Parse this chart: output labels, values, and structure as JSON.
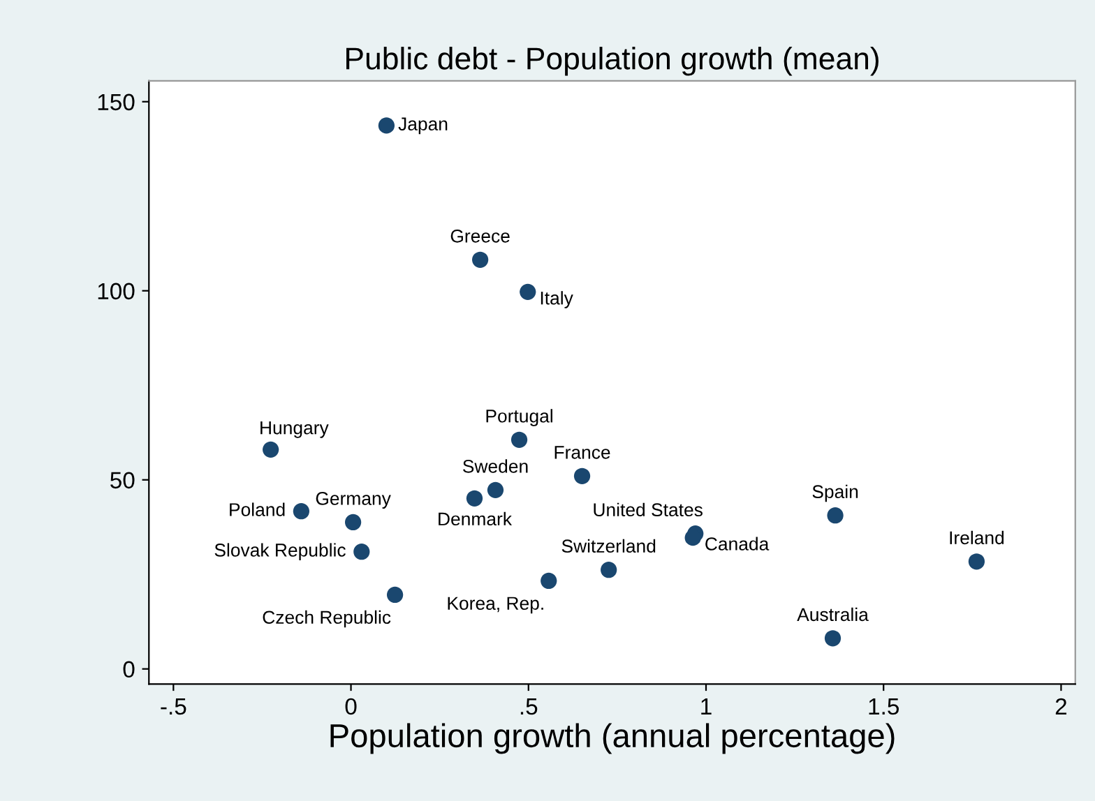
{
  "chart_data": {
    "type": "scatter",
    "title": "Public debt - Population growth (mean)",
    "xlabel": "Population growth (annual percentage)",
    "series": [
      {
        "color": "#1a476f",
        "x": [
          0.1,
          0.364,
          0.498,
          -0.226,
          0.474,
          0.651,
          0.407,
          0.348,
          -0.14,
          0.006,
          1.364,
          0.97,
          0.963,
          1.762,
          0.03,
          0.726,
          0.557,
          0.124,
          1.357
        ],
        "values": [
          143.7,
          108.2,
          99.7,
          58.0,
          60.6,
          51.0,
          47.3,
          45.1,
          41.7,
          38.8,
          40.6,
          35.8,
          34.7,
          28.4,
          31.0,
          26.2,
          23.3,
          19.6,
          8.1
        ]
      }
    ],
    "annotations": [
      {
        "text": "Japan",
        "x": 0.1,
        "y": 143.7
      },
      {
        "text": "Greece",
        "x": 0.364,
        "y": 108.2
      },
      {
        "text": "Italy",
        "x": 0.498,
        "y": 99.7
      },
      {
        "text": "Hungary",
        "x": -0.226,
        "y": 58.0
      },
      {
        "text": "Portugal",
        "x": 0.474,
        "y": 60.6
      },
      {
        "text": "France",
        "x": 0.651,
        "y": 51.0
      },
      {
        "text": "Sweden",
        "x": 0.407,
        "y": 47.3
      },
      {
        "text": "Denmark",
        "x": 0.348,
        "y": 45.1
      },
      {
        "text": "Poland",
        "x": -0.14,
        "y": 41.7
      },
      {
        "text": "Germany",
        "x": 0.006,
        "y": 38.8
      },
      {
        "text": "Spain",
        "x": 1.364,
        "y": 40.6
      },
      {
        "text": "United States",
        "x": 0.97,
        "y": 35.8
      },
      {
        "text": "Canada",
        "x": 0.963,
        "y": 34.7
      },
      {
        "text": "Ireland",
        "x": 1.762,
        "y": 28.4
      },
      {
        "text": "Slovak Republic",
        "x": 0.03,
        "y": 31.0
      },
      {
        "text": "Switzerland",
        "x": 0.726,
        "y": 26.2
      },
      {
        "text": "Korea, Rep.",
        "x": 0.557,
        "y": 23.3
      },
      {
        "text": "Czech Republic",
        "x": 0.124,
        "y": 19.6
      },
      {
        "text": "Australia",
        "x": 1.357,
        "y": 8.1
      }
    ],
    "xlim": [
      -0.569,
      2.04
    ],
    "ylim": [
      -4,
      155.5
    ],
    "xticks": [
      {
        "value": -0.5,
        "label": "-.5"
      },
      0,
      {
        "value": 0.5,
        "label": ".5"
      },
      1,
      1.5,
      2
    ],
    "yticks": [
      0,
      50,
      100,
      150
    ],
    "marker": "circle",
    "grid": false
  }
}
